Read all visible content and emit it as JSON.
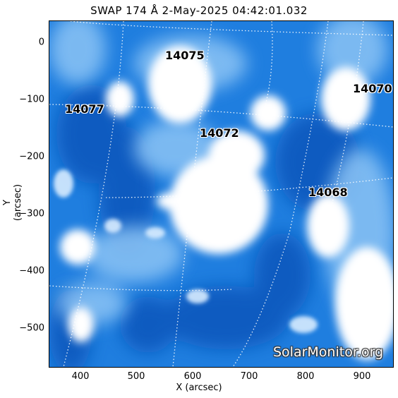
{
  "title": "SWAP 174 Å  2-May-2025 04:42:01.032",
  "x_axis": {
    "label": "X (arcsec)",
    "ticks": [
      "400",
      "500",
      "600",
      "700",
      "800",
      "900"
    ]
  },
  "y_axis": {
    "label": "Y (arcsec)",
    "ticks": [
      "0",
      "−100",
      "−200",
      "−300",
      "−400",
      "−500"
    ]
  },
  "active_regions": [
    "14075",
    "14070",
    "14077",
    "14072",
    "14068"
  ],
  "watermark": "SolarMonitor.org",
  "colors": {
    "deep_blue": "#0d5fc4",
    "mid_blue": "#2a86e4",
    "light_blue": "#8cc4f5",
    "bright": "#ffffff",
    "grid": "#ffffff"
  }
}
